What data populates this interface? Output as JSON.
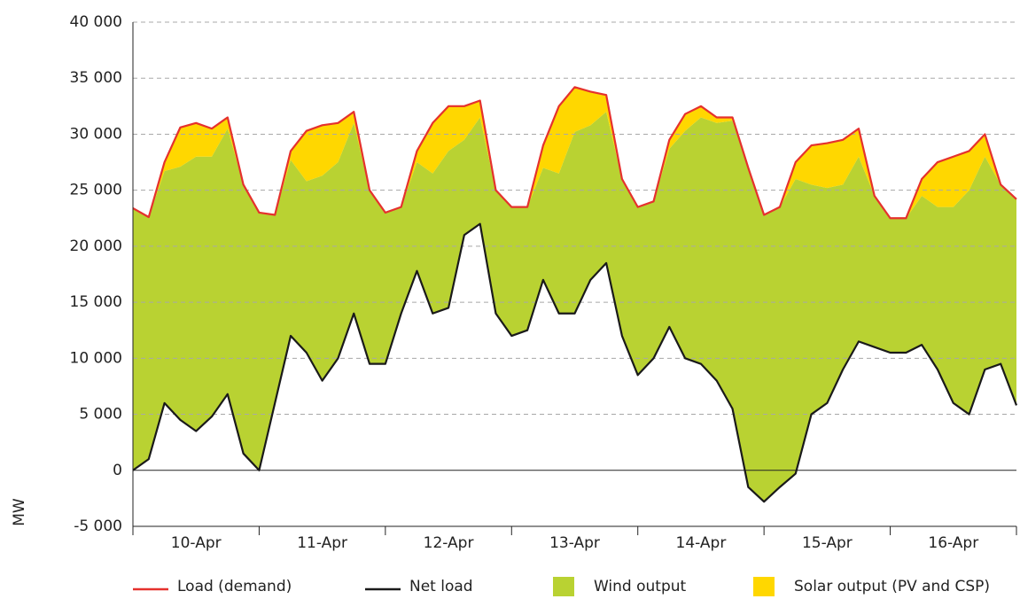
{
  "chart_data": {
    "type": "line",
    "y_label": "MW",
    "x": [
      0,
      0.125,
      0.25,
      0.375,
      0.5,
      0.625,
      0.75,
      0.875,
      1,
      1.125,
      1.25,
      1.375,
      1.5,
      1.625,
      1.75,
      1.875,
      2,
      2.125,
      2.25,
      2.375,
      2.5,
      2.625,
      2.75,
      2.875,
      3,
      3.125,
      3.25,
      3.375,
      3.5,
      3.625,
      3.75,
      3.875,
      4,
      4.125,
      4.25,
      4.375,
      4.5,
      4.625,
      4.75,
      4.875,
      5,
      5.125,
      5.25,
      5.375,
      5.5,
      5.625,
      5.75,
      5.875,
      6,
      6.125,
      6.25,
      6.375,
      6.5,
      6.625,
      6.75,
      6.875,
      7
    ],
    "xlim": [
      0,
      7
    ],
    "xticks": [
      {
        "value": 0.5,
        "label": "10-Apr"
      },
      {
        "value": 1.5,
        "label": "11-Apr"
      },
      {
        "value": 2.5,
        "label": "12-Apr"
      },
      {
        "value": 3.5,
        "label": "13-Apr"
      },
      {
        "value": 4.5,
        "label": "14-Apr"
      },
      {
        "value": 5.5,
        "label": "15-Apr"
      },
      {
        "value": 6.5,
        "label": "16-Apr"
      }
    ],
    "ylim": [
      -5000,
      40000
    ],
    "yticks": [
      {
        "value": -5000,
        "label": "-5 000"
      },
      0,
      {
        "value": 5000,
        "label": "5 000"
      },
      {
        "value": 10000,
        "label": "10 000"
      },
      {
        "value": 15000,
        "label": "15 000"
      },
      {
        "value": 20000,
        "label": "20 000"
      },
      {
        "value": 25000,
        "label": "25 000"
      },
      {
        "value": 30000,
        "label": "30 000"
      },
      {
        "value": 35000,
        "label": "35 000"
      },
      {
        "value": 40000,
        "label": "40 000"
      }
    ],
    "grid": true,
    "legend": "bottom",
    "series": [
      {
        "name": "Load (demand)",
        "color": "#e5312d",
        "kind": "line",
        "values": [
          23400,
          22600,
          27500,
          30600,
          31000,
          30500,
          31500,
          25500,
          23000,
          22800,
          28500,
          30300,
          30800,
          31000,
          32000,
          25000,
          23000,
          23500,
          28500,
          31000,
          32500,
          32500,
          33000,
          25000,
          23500,
          23500,
          29000,
          32500,
          34200,
          33800,
          33500,
          26000,
          23500,
          24000,
          29500,
          31800,
          32500,
          31500,
          31500,
          27000,
          22800,
          23500,
          27500,
          29000,
          29200,
          29500,
          30500,
          24500,
          22500,
          22500,
          26000,
          27500,
          28000,
          28500,
          30000,
          25500,
          24200
        ]
      },
      {
        "name": "Net load",
        "color": "#1a1a1a",
        "kind": "line",
        "values": [
          0,
          1000,
          6000,
          4500,
          3500,
          4800,
          6800,
          1500,
          0,
          6000,
          12000,
          10500,
          8000,
          10000,
          14000,
          9500,
          9500,
          14000,
          17800,
          14000,
          14500,
          21000,
          22000,
          14000,
          12000,
          12500,
          17000,
          14000,
          14000,
          17000,
          18500,
          12000,
          8500,
          10000,
          12800,
          10000,
          9500,
          8000,
          5500,
          -1500,
          -2800,
          -1500,
          -300,
          5000,
          6000,
          9000,
          11500,
          11000,
          10500,
          10500,
          11200,
          9000,
          6000,
          5000,
          9000,
          9500,
          5800
        ]
      },
      {
        "name": "Wind output",
        "color": "#b9d232",
        "kind": "area",
        "values": [
          23400,
          21600,
          20700,
          22600,
          24500,
          23200,
          23700,
          24000,
          23000,
          16800,
          15700,
          15300,
          18300,
          17500,
          17000,
          15500,
          13500,
          9500,
          9700,
          12500,
          14000,
          8500,
          9500,
          11000,
          11500,
          11000,
          10000,
          12500,
          16200,
          13800,
          13500,
          14000,
          15000,
          14000,
          15900,
          20300,
          22000,
          23000,
          25700,
          28500,
          25600,
          25000,
          26300,
          20500,
          19200,
          16500,
          16500,
          13500,
          12000,
          12000,
          13300,
          14500,
          17500,
          20000,
          19000,
          16000,
          18400
        ]
      },
      {
        "name": "Solar output (PV and CSP)",
        "color": "#ffd700",
        "kind": "area",
        "values": [
          0,
          0,
          800,
          3500,
          3000,
          2500,
          1000,
          0,
          0,
          0,
          800,
          4500,
          4500,
          3500,
          1000,
          0,
          0,
          0,
          1000,
          4500,
          4000,
          3000,
          1500,
          0,
          0,
          0,
          2000,
          6000,
          4000,
          3000,
          1500,
          0,
          0,
          0,
          800,
          1500,
          1000,
          500,
          300,
          0,
          0,
          0,
          1500,
          3500,
          4000,
          4000,
          2500,
          0,
          0,
          0,
          1500,
          4000,
          4500,
          3500,
          2000,
          0,
          0
        ]
      }
    ]
  }
}
